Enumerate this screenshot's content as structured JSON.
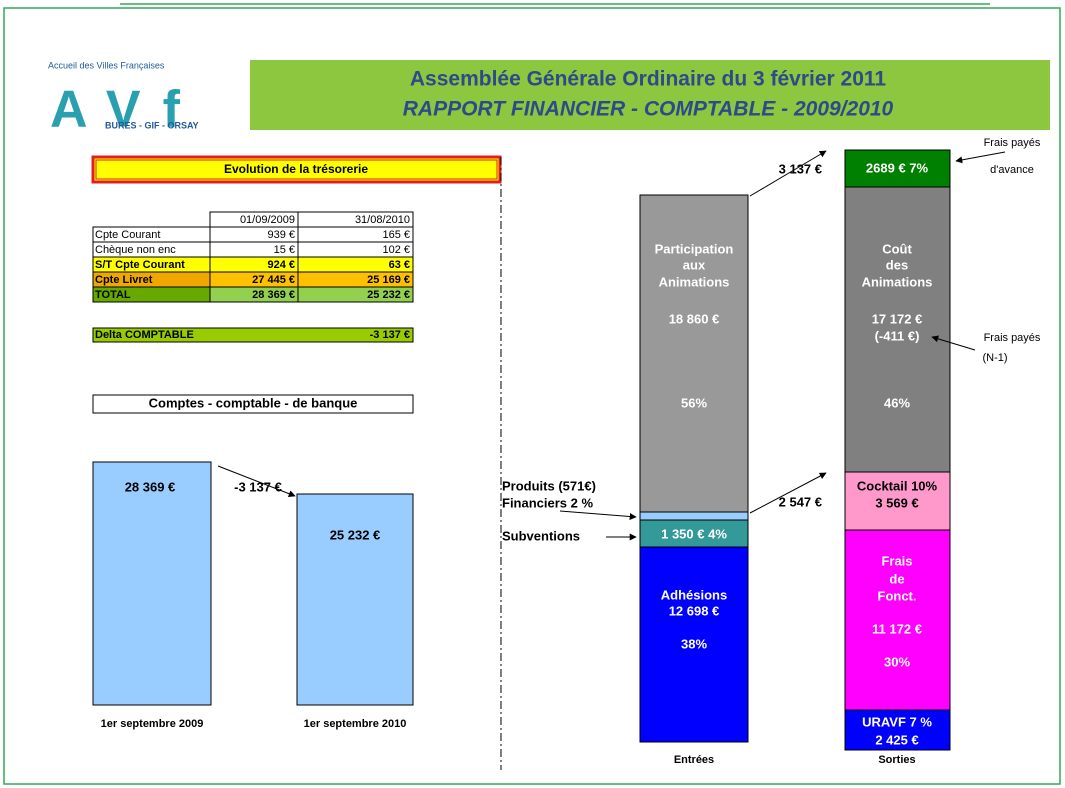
{
  "logo": {
    "tagline": "Accueil des Villes Françaises",
    "name": "AVf",
    "towns": "BURES - GIF - ORSAY"
  },
  "header": {
    "title": "Assemblée Générale Ordinaire du 3 février 2011",
    "subtitle": "RAPPORT FINANCIER - COMPTABLE - 2009/2010"
  },
  "treasury": {
    "title": "Evolution de la trésorerie",
    "columns": [
      "01/09/2009",
      "31/08/2010"
    ],
    "rows": [
      [
        "Cpte Courant",
        "939 €",
        "165 €"
      ],
      [
        "Chèque non enc",
        "15 €",
        "102 €"
      ],
      [
        "S/T Cpte Courant",
        "924 €",
        "63 €"
      ],
      [
        "Cpte Livret",
        "27 445 €",
        "25 169 €"
      ],
      [
        "TOTAL",
        "28 369 €",
        "25 232 €"
      ]
    ],
    "delta": [
      "Delta COMPTABLE",
      "-3 137 €"
    ]
  },
  "bank": {
    "title": "Comptes - comptable - de banque",
    "bars": [
      {
        "amount": "28 369 €",
        "label": "1er septembre 2009"
      },
      {
        "amount": "25 232 €",
        "label": "1er septembre 2010"
      }
    ],
    "change": "-3 137 €"
  },
  "incoming": {
    "label": "Entrées",
    "participation": [
      "Participation",
      "aux",
      "Animations",
      "18 860 €",
      "56%"
    ],
    "financial": [
      "Produits  (571€)",
      "Financiers 2 %"
    ],
    "subsidies": [
      "Subventions",
      "1 350 €  4%"
    ],
    "membership": [
      "Adhésions",
      "12 698 €",
      "38%"
    ]
  },
  "outgoing": {
    "label": "Sorties",
    "advance": "2689 €  7%",
    "events": [
      "Coût",
      "des",
      "Animations",
      "17 172 €",
      "(-411 €)",
      "46%"
    ],
    "cocktail": [
      "Cocktail 10%",
      "3 569 €"
    ],
    "operating": [
      "Frais",
      "de",
      "Fonct.",
      "11 172 €",
      "30%"
    ],
    "uravf": [
      "URAVF 7 %",
      "2 425 €"
    ]
  },
  "annotations": {
    "surplus": "3 137 €",
    "transfer": "2 547 €",
    "prepaid": [
      "Frais payés",
      "d'avance"
    ],
    "prior": [
      "Frais payés",
      "(N-1)"
    ]
  }
}
